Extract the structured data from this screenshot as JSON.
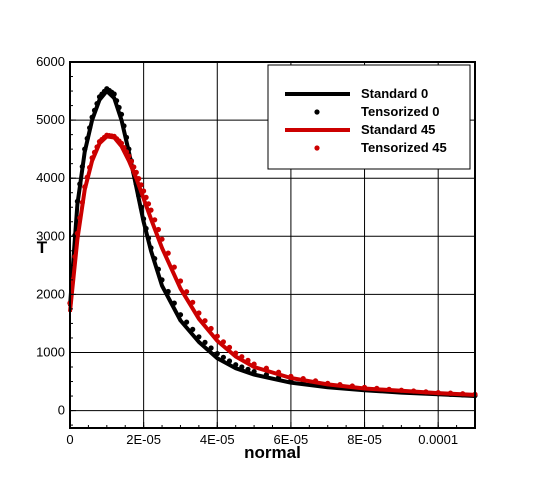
{
  "chart_data": {
    "type": "line",
    "xlabel": "normal",
    "ylabel": "T",
    "xlim": [
      0,
      0.00011
    ],
    "ylim": [
      -300,
      6000
    ],
    "x_ticks": [
      0,
      2e-05,
      4e-05,
      6e-05,
      8e-05,
      0.0001
    ],
    "x_tick_labels": [
      "0",
      "2E-05",
      "4E-05",
      "6E-05",
      "8E-05",
      "0.0001"
    ],
    "y_ticks": [
      0,
      1000,
      2000,
      3000,
      4000,
      5000,
      6000
    ],
    "y_tick_labels": [
      "0",
      "1000",
      "2000",
      "3000",
      "4000",
      "5000",
      "6000"
    ],
    "grid": true,
    "legend_position": "top-right",
    "colors": {
      "black": "#000000",
      "red": "#cc0000"
    },
    "series": [
      {
        "name": "Standard 0",
        "style": "line",
        "color": "#000000",
        "x": [
          0,
          2e-06,
          4e-06,
          6e-06,
          8e-06,
          1e-05,
          1.2e-05,
          1.4e-05,
          1.6e-05,
          1.8e-05,
          2e-05,
          2.2e-05,
          2.5e-05,
          3e-05,
          3.5e-05,
          4e-05,
          4.5e-05,
          5e-05,
          6e-05,
          7e-05,
          8e-05,
          9e-05,
          0.0001,
          0.00011
        ],
        "y": [
          1800,
          3550,
          4450,
          5000,
          5350,
          5500,
          5380,
          5000,
          4450,
          3850,
          3250,
          2750,
          2150,
          1550,
          1180,
          900,
          730,
          620,
          480,
          400,
          350,
          310,
          280,
          250
        ]
      },
      {
        "name": "Tensorized 0",
        "style": "dots",
        "color": "#000000",
        "x": [
          0,
          2e-06,
          4e-06,
          6e-06,
          8e-06,
          1e-05,
          1.2e-05,
          1.4e-05,
          1.6e-05,
          1.8e-05,
          2e-05,
          2.2e-05,
          2.5e-05,
          3e-05,
          3.5e-05,
          4e-05,
          4.5e-05,
          5e-05,
          6e-05,
          7e-05,
          8e-05,
          9e-05,
          0.0001,
          0.00011
        ],
        "y": [
          1850,
          3600,
          4500,
          5050,
          5400,
          5540,
          5450,
          5100,
          4500,
          3900,
          3300,
          2800,
          2250,
          1650,
          1270,
          980,
          790,
          670,
          520,
          430,
          370,
          330,
          290,
          260
        ]
      },
      {
        "name": "Standard 45",
        "style": "line",
        "color": "#cc0000",
        "x": [
          0,
          2e-06,
          4e-06,
          6e-06,
          8e-06,
          1e-05,
          1.2e-05,
          1.4e-05,
          1.6e-05,
          1.8e-05,
          2e-05,
          2.2e-05,
          2.5e-05,
          3e-05,
          3.5e-05,
          4e-05,
          4.5e-05,
          5e-05,
          6e-05,
          7e-05,
          8e-05,
          9e-05,
          0.0001,
          0.00011
        ],
        "y": [
          1700,
          2950,
          3800,
          4300,
          4600,
          4720,
          4700,
          4550,
          4300,
          4000,
          3650,
          3300,
          2800,
          2100,
          1580,
          1200,
          930,
          750,
          560,
          450,
          380,
          340,
          300,
          270
        ]
      },
      {
        "name": "Tensorized 45",
        "style": "dots",
        "color": "#cc0000",
        "x": [
          0,
          2e-06,
          4e-06,
          6e-06,
          8e-06,
          1e-05,
          1.2e-05,
          1.4e-05,
          1.6e-05,
          1.8e-05,
          2e-05,
          2.2e-05,
          2.5e-05,
          3e-05,
          3.5e-05,
          4e-05,
          4.5e-05,
          5e-05,
          6e-05,
          7e-05,
          8e-05,
          9e-05,
          0.0001,
          0.00011
        ],
        "y": [
          1850,
          3050,
          3850,
          4350,
          4630,
          4740,
          4720,
          4600,
          4380,
          4100,
          3780,
          3450,
          2950,
          2230,
          1680,
          1280,
          990,
          800,
          590,
          470,
          400,
          350,
          310,
          280
        ]
      }
    ]
  }
}
